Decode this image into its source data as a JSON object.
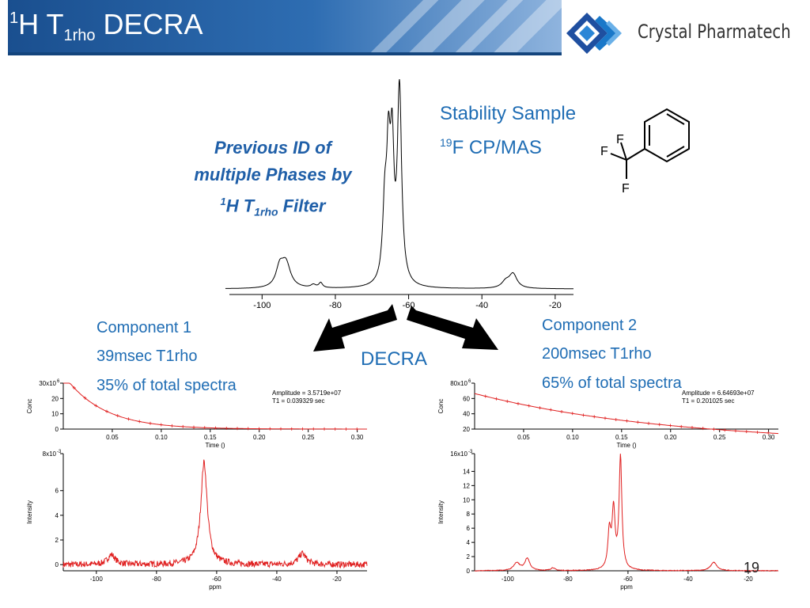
{
  "slide": {
    "title_sup": "1",
    "title_main": "H T",
    "title_sub": "1rho",
    "title_end": " DECRA",
    "page_number": "19",
    "accent_color": "#1f6db4"
  },
  "logo": {
    "text": "Crystal Pharmatech",
    "icon": "crystal-diamond-logo"
  },
  "note": {
    "line1": "Previous ID of",
    "line2": "multiple Phases by",
    "line3_sup": "1",
    "line3_main": "H T",
    "line3_sub": "1rho",
    "line3_end": " Filter"
  },
  "sample": {
    "line1": "Stability Sample",
    "line2_sup": "19",
    "line2_main": "F CP/MAS",
    "atoms": [
      "F",
      "F",
      "F"
    ]
  },
  "decra_label": "DECRA",
  "component1": {
    "title": "Component 1",
    "t1rho": "39msec T1rho",
    "fraction": "35% of total spectra"
  },
  "component2": {
    "title": "Component 2",
    "t1rho": "200msec T1rho",
    "fraction": "65% of total spectra"
  },
  "chart_data": [
    {
      "id": "main-spectrum",
      "type": "line",
      "xlim": [
        -110,
        -15
      ],
      "x_ticks": [
        -100,
        -80,
        -60,
        -40,
        -20
      ],
      "x_reversed": true,
      "peaks": [
        {
          "center": -95.2,
          "width": 1.2,
          "height": 0.09
        },
        {
          "center": -93.5,
          "width": 1.5,
          "height": 0.12
        },
        {
          "center": -86,
          "width": 0.8,
          "height": 0.015
        },
        {
          "center": -84,
          "width": 0.6,
          "height": 0.025
        },
        {
          "center": -66.5,
          "width": 0.7,
          "height": 0.35
        },
        {
          "center": -65.5,
          "width": 0.6,
          "height": 0.55
        },
        {
          "center": -64.5,
          "width": 0.6,
          "height": 0.6
        },
        {
          "center": -62.5,
          "width": 0.7,
          "height": 0.95
        },
        {
          "center": -33.5,
          "width": 1.3,
          "height": 0.03
        },
        {
          "center": -31.5,
          "width": 1.3,
          "height": 0.07
        }
      ],
      "color": "#000000"
    },
    {
      "id": "c1-decay",
      "type": "scatter",
      "annotation": [
        "Amplitude = 3.5719e+07",
        "T1 = 0.039329 sec"
      ],
      "amplitude": 35719000,
      "t1": 0.039329,
      "xlim": [
        0,
        0.31
      ],
      "ylim": [
        0,
        30
      ],
      "x_ticks": [
        "0.05",
        "0.10",
        "0.15",
        "0.20",
        "0.25",
        "0.30"
      ],
      "y_ticks": [
        "0",
        "10",
        "20"
      ],
      "y_top_label": "30x10",
      "y_top_exp": "6",
      "xlabel": "Time ()",
      "ylabel": "Conc",
      "color": "#e02020"
    },
    {
      "id": "c1-spectrum",
      "type": "line",
      "xlim": [
        -111,
        -10
      ],
      "ylim": [
        -0.0005,
        0.009
      ],
      "x_ticks": [
        "-100",
        "-80",
        "-60",
        "-40",
        "-20"
      ],
      "y_ticks": [
        "0",
        "2",
        "4",
        "6"
      ],
      "y_top_label": "8x10",
      "y_top_exp": "-3",
      "xlabel": "ppm",
      "ylabel": "Intensity",
      "peaks": [
        {
          "center": -95,
          "width": 1.5,
          "height": 0.0008
        },
        {
          "center": -64.2,
          "width": 1.3,
          "height": 0.0083
        },
        {
          "center": -31.5,
          "width": 1.5,
          "height": 0.0009
        }
      ],
      "noise": 0.00025,
      "color": "#e02020"
    },
    {
      "id": "c2-decay",
      "type": "scatter",
      "annotation": [
        "Amplitude = 6.64693e+07",
        "T1 = 0.201025 sec"
      ],
      "amplitude": 66469300,
      "t1": 0.201025,
      "xlim": [
        0,
        0.31
      ],
      "ylim": [
        20,
        80
      ],
      "x_ticks": [
        "0.05",
        "0.10",
        "0.15",
        "0.20",
        "0.25",
        "0.30"
      ],
      "y_ticks": [
        "20",
        "40",
        "60"
      ],
      "y_top_label": "80x10",
      "y_top_exp": "6",
      "xlabel": "Time ()",
      "ylabel": "Conc",
      "color": "#e02020"
    },
    {
      "id": "c2-spectrum",
      "type": "line",
      "xlim": [
        -111,
        -10
      ],
      "ylim": [
        0,
        0.0165
      ],
      "x_ticks": [
        "-100",
        "-80",
        "-60",
        "-40",
        "-20"
      ],
      "y_ticks": [
        "0",
        "2",
        "4",
        "6",
        "8",
        "10",
        "12",
        "14"
      ],
      "y_top_label": "16x10",
      "y_top_exp": "-3",
      "xlabel": "ppm",
      "ylabel": "Intensity",
      "peaks": [
        {
          "center": -97,
          "width": 1.2,
          "height": 0.0011
        },
        {
          "center": -93.5,
          "width": 1.0,
          "height": 0.0017
        },
        {
          "center": -85,
          "width": 0.8,
          "height": 0.0004
        },
        {
          "center": -66.2,
          "width": 0.6,
          "height": 0.0052
        },
        {
          "center": -64.8,
          "width": 0.6,
          "height": 0.0082
        },
        {
          "center": -62.5,
          "width": 0.55,
          "height": 0.0158
        },
        {
          "center": -31.5,
          "width": 1.2,
          "height": 0.0012
        }
      ],
      "noise": 5e-05,
      "color": "#e02020"
    }
  ]
}
